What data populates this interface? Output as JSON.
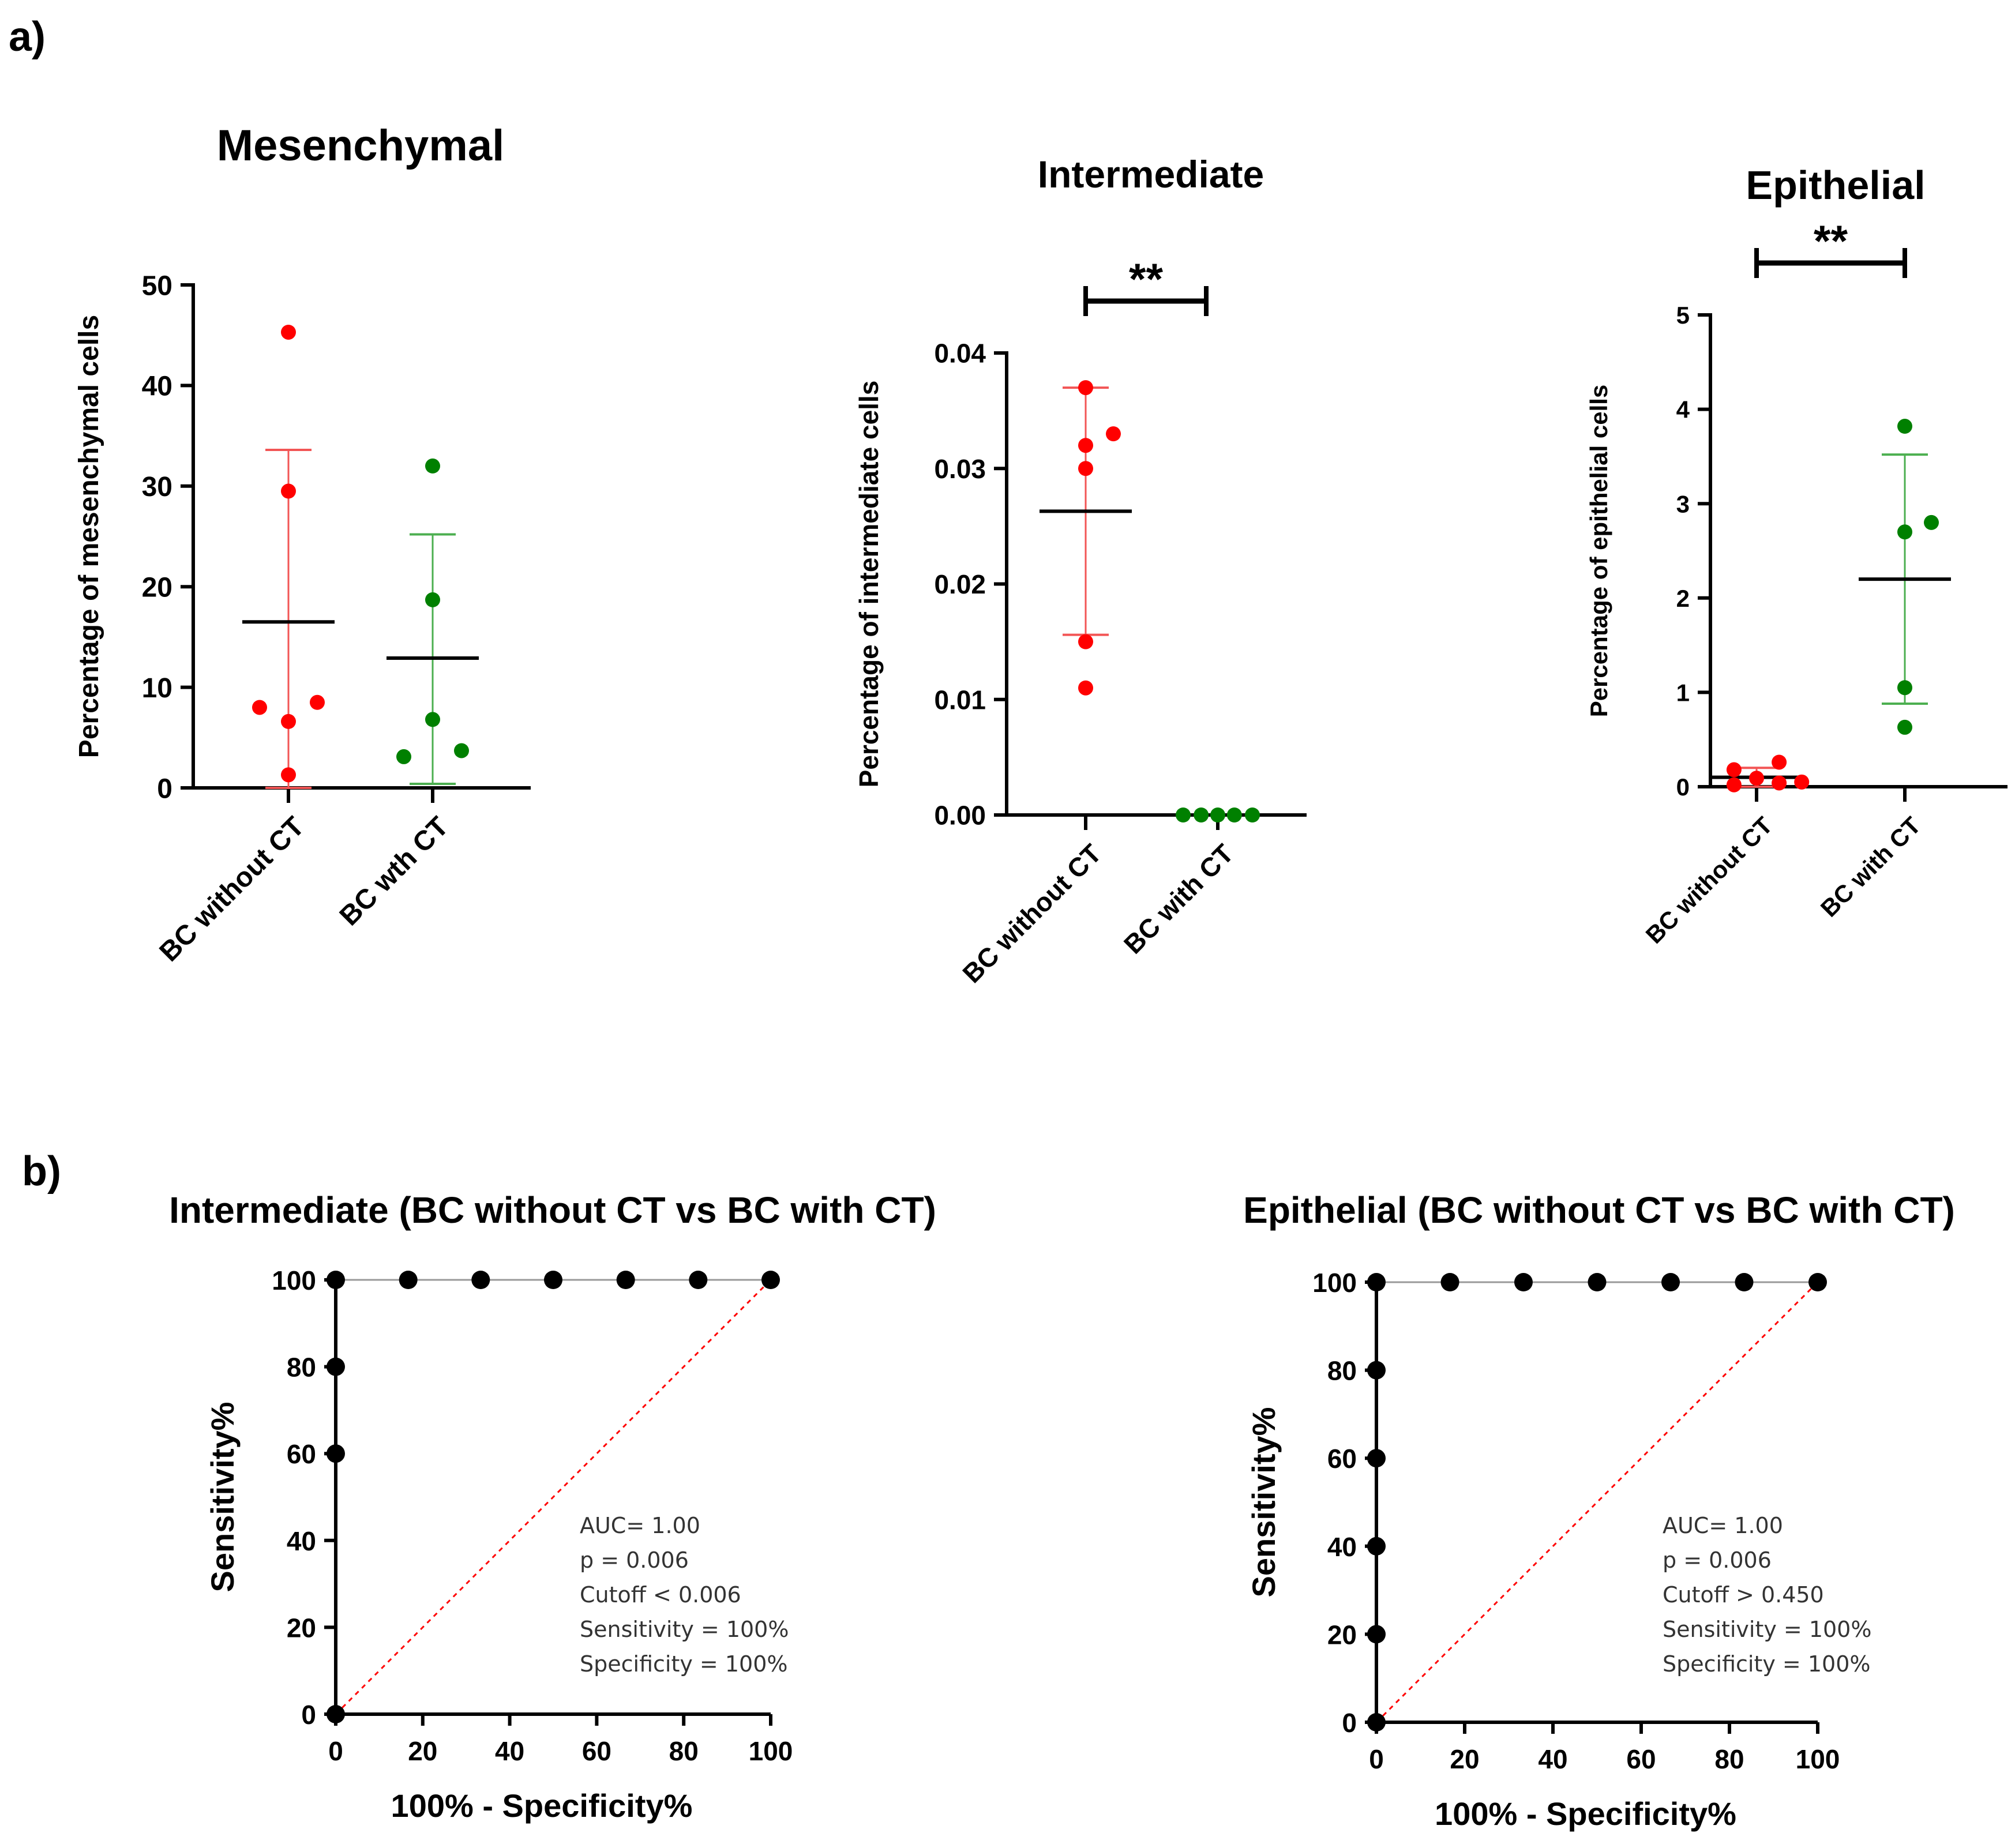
{
  "panels": {
    "a": "a)",
    "b": "b)"
  },
  "colors": {
    "red": "#ff0000",
    "green": "#008000",
    "redLine": "#f25555",
    "greenLine": "#4caf50",
    "black": "#000000",
    "gray": "#999999"
  },
  "chart_data": [
    {
      "type": "scatter",
      "title": "Mesenchymal",
      "ylabel": "Percentage of mesenchymal cells",
      "xlabel": "",
      "ylim": [
        0,
        50
      ],
      "yticks": [
        "0",
        "10",
        "20",
        "30",
        "40",
        "50"
      ],
      "categories": [
        "BC without CT",
        "BC wth CT"
      ],
      "groups": [
        {
          "name": "BC without CT",
          "color": "#ff0000",
          "lineColor": "#f25555",
          "points": [
            [
              0.0,
              45.3
            ],
            [
              0.0,
              29.5
            ],
            [
              -0.2,
              8.0
            ],
            [
              0.2,
              8.5
            ],
            [
              0.0,
              6.6
            ],
            [
              0.0,
              1.3
            ]
          ],
          "mean": 16.5,
          "sd_low": 0.0,
          "sd_high": 33.6
        },
        {
          "name": "BC wth CT",
          "color": "#008000",
          "lineColor": "#4caf50",
          "points": [
            [
              0.0,
              32.0
            ],
            [
              0.0,
              18.7
            ],
            [
              0.0,
              6.8
            ],
            [
              -0.2,
              3.1
            ],
            [
              0.2,
              3.7
            ]
          ],
          "mean": 12.9,
          "sd_low": 0.4,
          "sd_high": 25.2
        }
      ]
    },
    {
      "type": "scatter",
      "title": "Intermediate",
      "ylabel": "Percentage of intermediate cells",
      "xlabel": "",
      "ylim": [
        0,
        0.04
      ],
      "yticks": [
        "0.00",
        "0.01",
        "0.02",
        "0.03",
        "0.04"
      ],
      "categories": [
        "BC without CT",
        "BC with CT"
      ],
      "significance": "**",
      "groups": [
        {
          "name": "BC without CT",
          "color": "#ff0000",
          "lineColor": "#f25555",
          "points": [
            [
              0.0,
              0.037
            ],
            [
              0.2,
              0.033
            ],
            [
              0.0,
              0.032
            ],
            [
              0.0,
              0.03
            ],
            [
              0.0,
              0.015
            ],
            [
              0.0,
              0.011
            ]
          ],
          "mean": 0.0263,
          "sd_low": 0.0156,
          "sd_high": 0.037
        },
        {
          "name": "BC with CT",
          "color": "#008000",
          "lineColor": "#4caf50",
          "points": [
            [
              -0.25,
              0.0
            ],
            [
              -0.12,
              0.0
            ],
            [
              0.0,
              0.0
            ],
            [
              0.12,
              0.0
            ],
            [
              0.25,
              0.0
            ]
          ],
          "mean": 0.0,
          "sd_low": 0.0,
          "sd_high": 0.0
        }
      ]
    },
    {
      "type": "scatter",
      "title": "Epithelial",
      "ylabel": "Percentage of epithelial cells",
      "xlabel": "",
      "ylim": [
        0,
        5
      ],
      "yticks": [
        "0",
        "1",
        "2",
        "3",
        "4",
        "5"
      ],
      "categories": [
        "BC without CT",
        "BC with CT"
      ],
      "significance": "**",
      "groups": [
        {
          "name": "BC without CT",
          "color": "#ff0000",
          "lineColor": "#f25555",
          "points": [
            [
              -0.17,
              0.18
            ],
            [
              0.17,
              0.26
            ],
            [
              0.0,
              0.09
            ],
            [
              -0.17,
              0.02
            ],
            [
              0.17,
              0.04
            ],
            [
              0.34,
              0.05
            ]
          ],
          "mean": 0.1,
          "sd_low": 0.0,
          "sd_high": 0.2
        },
        {
          "name": "BC with CT",
          "color": "#008000",
          "lineColor": "#4caf50",
          "points": [
            [
              0.0,
              3.82
            ],
            [
              0.0,
              2.7
            ],
            [
              0.2,
              2.8
            ],
            [
              0.0,
              1.05
            ],
            [
              0.0,
              0.63
            ]
          ],
          "mean": 2.2,
          "sd_low": 0.88,
          "sd_high": 3.52
        }
      ]
    },
    {
      "type": "line",
      "title": "Intermediate (BC without  CT vs BC with CT)",
      "xlabel": "100% - Specificity%",
      "ylabel": "Sensitivity%",
      "xlim": [
        0,
        100
      ],
      "ylim": [
        0,
        100
      ],
      "xticks": [
        "0",
        "20",
        "40",
        "60",
        "80",
        "100"
      ],
      "yticks": [
        "0",
        "20",
        "40",
        "60",
        "80",
        "100"
      ],
      "roc": {
        "x": [
          0,
          0,
          0,
          0,
          16.67,
          33.33,
          50,
          66.67,
          83.33,
          100
        ],
        "y": [
          0,
          60,
          80,
          100,
          100,
          100,
          100,
          100,
          100,
          100
        ]
      },
      "stats": [
        "AUC= 1.00",
        "p = 0.006",
        "Cutoff < 0.006",
        "Sensitivity = 100%",
        "Specificity = 100%"
      ]
    },
    {
      "type": "line",
      "title": "Epithelial (BC without  CT vs BC with CT)",
      "xlabel": "100% - Specificity%",
      "ylabel": "Sensitivity%",
      "xlim": [
        0,
        100
      ],
      "ylim": [
        0,
        100
      ],
      "xticks": [
        "0",
        "20",
        "40",
        "60",
        "80",
        "100"
      ],
      "yticks": [
        "0",
        "20",
        "40",
        "60",
        "80",
        "100"
      ],
      "roc": {
        "x": [
          0,
          0,
          0,
          0,
          0,
          0,
          16.67,
          33.33,
          50,
          66.67,
          83.33,
          100
        ],
        "y": [
          0,
          20,
          40,
          60,
          80,
          100,
          100,
          100,
          100,
          100,
          100,
          100
        ]
      },
      "stats": [
        "AUC= 1.00",
        "p = 0.006",
        "Cutoff > 0.450",
        "Sensitivity = 100%",
        "Specificity = 100%"
      ]
    }
  ]
}
